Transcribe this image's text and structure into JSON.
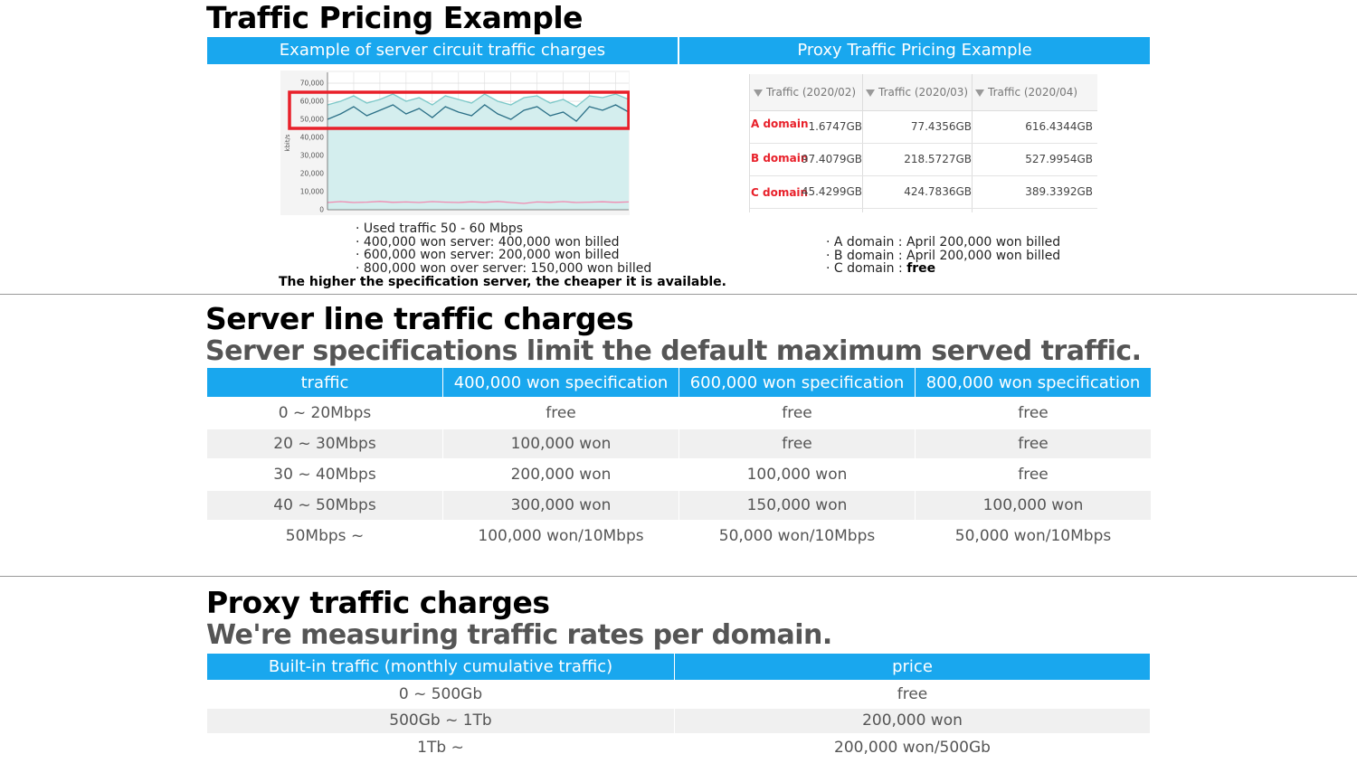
{
  "section1": {
    "title": "Traffic Pricing Example",
    "left_header": "Example of server circuit traffic charges",
    "right_header": "Proxy Traffic Pricing Example",
    "example_chart": {
      "type": "line",
      "ylabel": "kbit/s",
      "ylim": [
        0,
        76000
      ],
      "yticks": [
        0,
        {
          "value": 10000,
          "label": "10,000"
        },
        {
          "value": 20000,
          "label": "20,000"
        },
        {
          "value": 30000,
          "label": "30,000"
        },
        {
          "value": 40000,
          "label": "40,000"
        },
        {
          "value": 50000,
          "label": "50,000"
        },
        {
          "value": 60000,
          "label": "60,000"
        },
        {
          "value": 70000,
          "label": "70,000"
        }
      ],
      "grid": true,
      "series": [
        {
          "color": "#7cc8c8",
          "fill": "#d4eeee",
          "values": [
            58000,
            60000,
            63000,
            59000,
            61000,
            64000,
            60000,
            62000,
            58000,
            63000,
            61000,
            59000,
            64000,
            60000,
            58000,
            62000,
            63000,
            59000,
            61000,
            57000,
            63000,
            62000,
            64000,
            61000
          ]
        },
        {
          "color": "#2a6f86",
          "values": [
            50000,
            53000,
            57000,
            52000,
            55000,
            58000,
            53000,
            56000,
            51000,
            57000,
            54000,
            52000,
            58000,
            53000,
            50000,
            55000,
            57000,
            52000,
            54000,
            49000,
            57000,
            55000,
            58000,
            54000
          ]
        },
        {
          "color": "#f08ab0",
          "values": [
            4000,
            4500,
            4000,
            4200,
            4600,
            4100,
            4300,
            4000,
            4500,
            4200,
            4000,
            4400,
            4100,
            4600,
            4000,
            3500,
            4300,
            4100,
            4500,
            4000,
            4200,
            4400,
            4100,
            4300
          ]
        }
      ],
      "highlight": [
        45000,
        65000
      ],
      "highlight_color": "#e8202a"
    },
    "left_notes": [
      "· Used traffic 50 - 60 Mbps",
      "· 400,000 won server: 400,000 won billed",
      "· 600,000 won server: 200,000 won billed",
      "· 800,000 won over server: 150,000 won billed"
    ],
    "left_conclusion": "The higher the specification server, the cheaper it is available.",
    "proxy_table": {
      "headers": [
        "Traffic (2020/02)",
        "Traffic (2020/03)",
        "Traffic (2020/04)"
      ],
      "rows": [
        [
          "A domain",
          "1.6747GB",
          "77.4356GB",
          "616.4344GB"
        ],
        [
          "B domain",
          "97.4079GB",
          "218.5727GB",
          "527.9954GB"
        ],
        [
          "C domain",
          "45.4299GB",
          "424.7836GB",
          "389.3392GB"
        ]
      ]
    },
    "right_notes": [
      {
        "text": "· A domain : April 200,000 won billed"
      },
      {
        "text": "· B domain : April 200,000 won billed"
      },
      {
        "text": "· C domain : ",
        "emphasis": "free"
      }
    ]
  },
  "section2": {
    "title": "Server line traffic charges",
    "subtitle": "Server specifications limit the default maximum served traffic.",
    "table": {
      "headers": [
        "traffic",
        "400,000 won specification",
        "600,000 won specification",
        "800,000 won specification"
      ],
      "rows": [
        [
          "0 ~ 20Mbps",
          "free",
          "free",
          "free"
        ],
        [
          "20 ~ 30Mbps",
          "100,000 won",
          "free",
          "free"
        ],
        [
          "30 ~ 40Mbps",
          "200,000 won",
          "100,000 won",
          "free"
        ],
        [
          "40 ~ 50Mbps",
          "300,000 won",
          "150,000 won",
          "100,000 won"
        ],
        [
          "50Mbps ~",
          "100,000 won/10Mbps",
          "50,000 won/10Mbps",
          "50,000 won/10Mbps"
        ]
      ]
    }
  },
  "section3": {
    "title": "Proxy traffic charges",
    "subtitle": "We're measuring traffic rates per domain.",
    "table": {
      "headers": [
        "Built-in traffic (monthly cumulative traffic)",
        "price"
      ],
      "rows": [
        [
          "0 ~ 500Gb",
          "free"
        ],
        [
          "500Gb ~ 1Tb",
          "200,000 won"
        ],
        [
          "1Tb ~",
          "200,000 won/500Gb"
        ]
      ]
    }
  }
}
